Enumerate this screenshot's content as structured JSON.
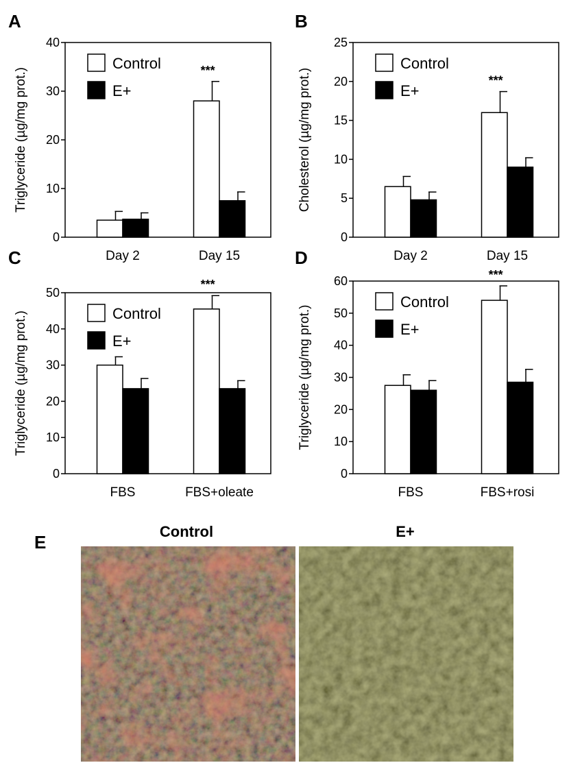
{
  "chart_data": [
    {
      "type": "bar",
      "panel": "A",
      "ylabel": "Triglyceride (µg/mg prot.)",
      "ylim": [
        0,
        40
      ],
      "yticks": [
        0,
        10,
        20,
        30,
        40
      ],
      "categories": [
        "Day 2",
        "Day 15"
      ],
      "series": [
        {
          "name": "Control",
          "values": [
            3.5,
            28
          ],
          "errors": [
            1.8,
            4
          ],
          "color": "#ffffff"
        },
        {
          "name": "E+",
          "values": [
            3.7,
            7.5
          ],
          "errors": [
            1.3,
            1.8
          ],
          "color": "#000000"
        }
      ],
      "annotations": [
        {
          "category": 1,
          "text": "***"
        }
      ],
      "legend": "top-left"
    },
    {
      "type": "bar",
      "panel": "B",
      "ylabel": "Cholesterol (µg/mg prot.)",
      "ylim": [
        0,
        25
      ],
      "yticks": [
        0,
        5,
        10,
        15,
        20,
        25
      ],
      "categories": [
        "Day 2",
        "Day 15"
      ],
      "series": [
        {
          "name": "Control",
          "values": [
            6.5,
            16
          ],
          "errors": [
            1.3,
            2.7
          ],
          "color": "#ffffff"
        },
        {
          "name": "E+",
          "values": [
            4.8,
            9
          ],
          "errors": [
            1.0,
            1.2
          ],
          "color": "#000000"
        }
      ],
      "annotations": [
        {
          "category": 1,
          "text": "***"
        }
      ],
      "legend": "top-left"
    },
    {
      "type": "bar",
      "panel": "C",
      "ylabel": "Triglyceride (µg/mg prot.)",
      "ylim": [
        0,
        50
      ],
      "yticks": [
        0,
        10,
        20,
        30,
        40,
        50
      ],
      "categories": [
        "FBS",
        "FBS+oleate"
      ],
      "series": [
        {
          "name": "Control",
          "values": [
            30,
            45.5
          ],
          "errors": [
            2.3,
            3.7
          ],
          "color": "#ffffff"
        },
        {
          "name": "E+",
          "values": [
            23.5,
            23.5
          ],
          "errors": [
            2.8,
            2.2
          ],
          "color": "#000000"
        }
      ],
      "annotations": [
        {
          "category": 1,
          "text": "***"
        }
      ],
      "legend": "top-left"
    },
    {
      "type": "bar",
      "panel": "D",
      "ylabel": "Triglyceride (µg/mg prot.)",
      "ylim": [
        0,
        60
      ],
      "yticks": [
        0,
        10,
        20,
        30,
        40,
        50,
        60
      ],
      "categories": [
        "FBS",
        "FBS+rosi"
      ],
      "series": [
        {
          "name": "Control",
          "values": [
            27.5,
            54
          ],
          "errors": [
            3.3,
            4.5
          ],
          "color": "#ffffff"
        },
        {
          "name": "E+",
          "values": [
            26,
            28.5
          ],
          "errors": [
            3.0,
            4.0
          ],
          "color": "#000000"
        }
      ],
      "annotations": [
        {
          "category": 1,
          "text": "***"
        }
      ],
      "legend": "top-left"
    }
  ],
  "panel_e": {
    "letter": "E",
    "images": [
      {
        "title": "Control",
        "base_color": "#6f6848",
        "accent_color": "#b4442e"
      },
      {
        "title": "E+",
        "base_color": "#5c5c40",
        "accent_color": "#c5c389"
      }
    ]
  }
}
